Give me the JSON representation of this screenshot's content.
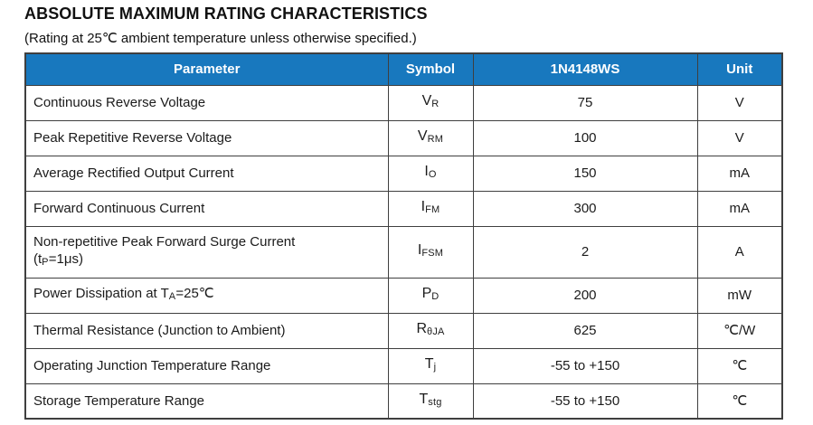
{
  "page": {
    "title": "ABSOLUTE MAXIMUM RATING CHARACTERISTICS",
    "subtitle": "(Rating at 25℃  ambient temperature unless otherwise specified.)"
  },
  "colors": {
    "header_bg": "#1878BE",
    "header_text": "#ffffff",
    "border": "#3f3f3f",
    "body_text": "#1b1b1b"
  },
  "table": {
    "columns": [
      "Parameter",
      "Symbol",
      "1N4148WS",
      "Unit"
    ],
    "rows": [
      {
        "parameter": [
          {
            "t": "Continuous Reverse Voltage"
          }
        ],
        "symbol": [
          {
            "t": "V"
          },
          {
            "t": "R",
            "sub": true
          }
        ],
        "value": "75",
        "unit": "V"
      },
      {
        "parameter": [
          {
            "t": "Peak Repetitive Reverse Voltage"
          }
        ],
        "symbol": [
          {
            "t": "V"
          },
          {
            "t": "RM",
            "sub": true
          }
        ],
        "value": "100",
        "unit": "V"
      },
      {
        "parameter": [
          {
            "t": "Average Rectified Output Current"
          }
        ],
        "symbol": [
          {
            "t": "I"
          },
          {
            "t": "O",
            "sub": true
          }
        ],
        "value": "150",
        "unit": "mA"
      },
      {
        "parameter": [
          {
            "t": "Forward Continuous Current"
          }
        ],
        "symbol": [
          {
            "t": "I"
          },
          {
            "t": "FM",
            "sub": true
          }
        ],
        "value": "300",
        "unit": "mA"
      },
      {
        "parameter": [
          {
            "t": "Non-repetitive Peak Forward Surge Current"
          },
          {
            "br": true
          },
          {
            "t": "(t"
          },
          {
            "t": "P",
            "sub": true
          },
          {
            "t": "=1μs)"
          }
        ],
        "symbol": [
          {
            "t": "I"
          },
          {
            "t": "FSM",
            "sub": true
          }
        ],
        "value": "2",
        "unit": "A"
      },
      {
        "parameter": [
          {
            "t": "Power Dissipation at T"
          },
          {
            "t": "A",
            "sub": true
          },
          {
            "t": "=25℃"
          }
        ],
        "symbol": [
          {
            "t": "P"
          },
          {
            "t": "D",
            "sub": true
          }
        ],
        "value": "200",
        "unit": "mW"
      },
      {
        "parameter": [
          {
            "t": "Thermal Resistance (Junction to Ambient)"
          }
        ],
        "symbol": [
          {
            "t": "R"
          },
          {
            "t": "θJA",
            "sub": true
          }
        ],
        "value": "625",
        "unit": "℃/W"
      },
      {
        "parameter": [
          {
            "t": "Operating Junction Temperature Range"
          }
        ],
        "symbol": [
          {
            "t": "T"
          },
          {
            "t": "j",
            "sub": true
          }
        ],
        "value": "-55 to +150",
        "unit": "℃"
      },
      {
        "parameter": [
          {
            "t": "Storage Temperature Range"
          }
        ],
        "symbol": [
          {
            "t": "T"
          },
          {
            "t": "stg",
            "sub": true
          }
        ],
        "value": "-55 to +150",
        "unit": "℃"
      }
    ]
  }
}
